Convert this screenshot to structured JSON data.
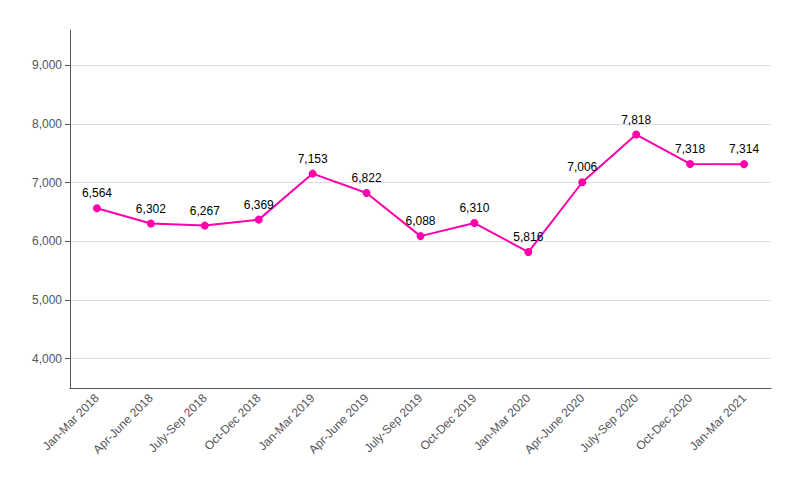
{
  "chart_data": {
    "type": "line",
    "categories": [
      "Jan-Mar 2018",
      "Apr-June 2018",
      "July-Sep 2018",
      "Oct-Dec 2018",
      "Jan-Mar 2019",
      "Apr-June 2019",
      "July-Sep 2019",
      "Oct-Dec 2019",
      "Jan-Mar 2020",
      "Apr-June 2020",
      "July-Sep 2020",
      "Oct-Dec 2020",
      "Jan-Mar 2021"
    ],
    "values": [
      6564,
      6302,
      6267,
      6369,
      7153,
      6822,
      6088,
      6310,
      5816,
      7006,
      7818,
      7318,
      7314
    ],
    "value_labels": [
      "6,564",
      "6,302",
      "6,267",
      "6,369",
      "7,153",
      "6,822",
      "6,088",
      "6,310",
      "5,816",
      "7,006",
      "7,818",
      "7,318",
      "7,314"
    ],
    "data_labels": true,
    "color": "#FF00AA",
    "marker": "circle",
    "ylim": [
      3500,
      9600
    ],
    "yticks": [
      {
        "value": 4000,
        "label": "4,000"
      },
      {
        "value": 5000,
        "label": "5,000"
      },
      {
        "value": 6000,
        "label": "6,000"
      },
      {
        "value": 7000,
        "label": "7,000"
      },
      {
        "value": 8000,
        "label": "8,000"
      },
      {
        "value": 9000,
        "label": "9,000"
      }
    ],
    "grid": true
  }
}
